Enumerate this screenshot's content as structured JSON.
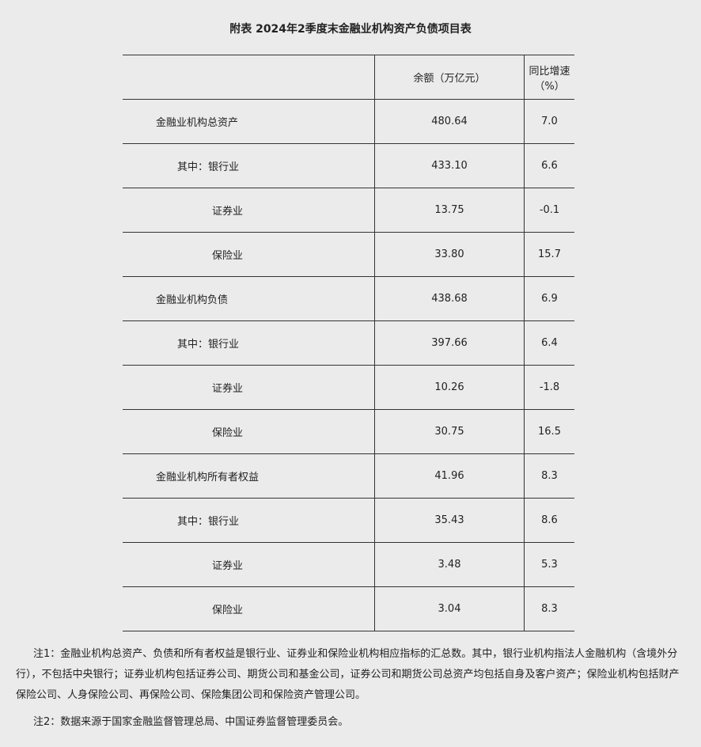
{
  "title": "附表  2024年2季度末金融业机构资产负债项目表",
  "headers": [
    "",
    "余额（万亿元）",
    "同比增速（%）"
  ],
  "rows": [
    {
      "label": "金融业机构总资产",
      "level": 0,
      "amount": "480.64",
      "growth": "7.0"
    },
    {
      "label": "其中：银行业",
      "level": 1,
      "amount": "433.10",
      "growth": "6.6"
    },
    {
      "label": "证券业",
      "level": 2,
      "amount": "13.75",
      "growth": "-0.1"
    },
    {
      "label": "保险业",
      "level": 2,
      "amount": "33.80",
      "growth": "15.7"
    },
    {
      "label": "金融业机构负债",
      "level": 0,
      "amount": "438.68",
      "growth": "6.9"
    },
    {
      "label": "其中：银行业",
      "level": 1,
      "amount": "397.66",
      "growth": "6.4"
    },
    {
      "label": "证券业",
      "level": 2,
      "amount": "10.26",
      "growth": "-1.8"
    },
    {
      "label": "保险业",
      "level": 2,
      "amount": "30.75",
      "growth": "16.5"
    },
    {
      "label": "金融业机构所有者权益",
      "level": 0,
      "amount": "41.96",
      "growth": "8.3"
    },
    {
      "label": "其中：银行业",
      "level": 1,
      "amount": "35.43",
      "growth": "8.6"
    },
    {
      "label": "证券业",
      "level": 2,
      "amount": "3.48",
      "growth": "5.3"
    },
    {
      "label": "保险业",
      "level": 2,
      "amount": "3.04",
      "growth": "8.3"
    }
  ],
  "notes": [
    "注1：金融业机构总资产、负债和所有者权益是银行业、证券业和保险业机构相应指标的汇总数。其中，银行业机构指法人金融机构（含境外分行），不包括中央银行；证券业机构包括证券公司、期货公司和基金公司，证券公司和期货公司总资产均包括自身及客户资产；保险业机构包括财产保险公司、人身保险公司、再保险公司、保险集团公司和保险资产管理公司。",
    "注2：数据来源于国家金融监督管理总局、中国证券监督管理委员会。"
  ]
}
